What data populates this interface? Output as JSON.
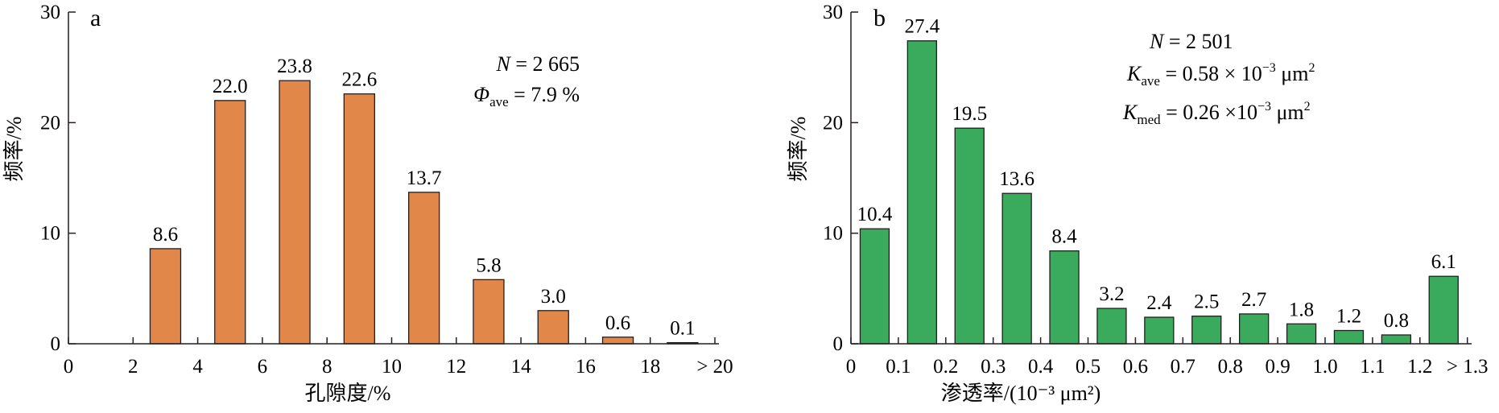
{
  "chart_data": [
    {
      "type": "bar",
      "panel": "a",
      "bar_color": "#e2874a",
      "categories": [
        "0–2",
        "2–4",
        "4–6",
        "6–8",
        "8–10",
        "10–12",
        "12–14",
        "14–16",
        "16–18",
        "18–20"
      ],
      "values": [
        0,
        8.6,
        22.0,
        23.8,
        22.6,
        13.7,
        5.8,
        3.0,
        0.6,
        0.1
      ],
      "value_labels": [
        "",
        "8.6",
        "22.0",
        "23.8",
        "22.6",
        "13.7",
        "5.8",
        "3.0",
        "0.6",
        "0.1"
      ],
      "x_ticks": [
        "0",
        "2",
        "4",
        "6",
        "8",
        "10",
        "12",
        "14",
        "16",
        "18",
        "> 20"
      ],
      "y_ticks": [
        "0",
        "10",
        "20",
        "30"
      ],
      "ylim": [
        0,
        30
      ],
      "xlabel": "孔隙度/%",
      "ylabel": "频率/%",
      "annotations": {
        "n_label": "N",
        "n_value": " = 2 665",
        "phi_label": "Φ",
        "phi_sub": "ave",
        "phi_value": " = 7.9 %"
      }
    },
    {
      "type": "bar",
      "panel": "b",
      "bar_color": "#3aaa5c",
      "categories": [
        "0–0.1",
        "0.1–0.2",
        "0.2–0.3",
        "0.3–0.4",
        "0.4–0.5",
        "0.5–0.6",
        "0.6–0.7",
        "0.7–0.8",
        "0.8–0.9",
        "0.9–1.0",
        "1.0–1.1",
        "1.1–1.2",
        "> 1.2"
      ],
      "values": [
        10.4,
        27.4,
        19.5,
        13.6,
        8.4,
        3.2,
        2.4,
        2.5,
        2.7,
        1.8,
        1.2,
        0.8,
        6.1
      ],
      "value_labels": [
        "10.4",
        "27.4",
        "19.5",
        "13.6",
        "8.4",
        "3.2",
        "2.4",
        "2.5",
        "2.7",
        "1.8",
        "1.2",
        "0.8",
        "6.1"
      ],
      "x_ticks": [
        "0",
        "0.1",
        "0.2",
        "0.3",
        "0.4",
        "0.5",
        "0.6",
        "0.7",
        "0.8",
        "0.9",
        "1.0",
        "1.1",
        "1.2",
        "> 1.3"
      ],
      "y_ticks": [
        "0",
        "10",
        "20",
        "30"
      ],
      "ylim": [
        0,
        30
      ],
      "xlabel": "渗透率/(10⁻³ μm²)",
      "ylabel": "频率/%",
      "annotations": {
        "n_label": "N",
        "n_value": " = 2 501",
        "kave_label": "K",
        "kave_sub": "ave",
        "kave_value": " = 0.58 × 10",
        "kave_exp": "−3",
        "kave_unit": " μm",
        "kave_unit_exp": "2",
        "kmed_label": "K",
        "kmed_sub": "med",
        "kmed_value": " = 0.26 ×10",
        "kmed_exp": "−3",
        "kmed_unit": " μm",
        "kmed_unit_exp": "2"
      }
    }
  ]
}
